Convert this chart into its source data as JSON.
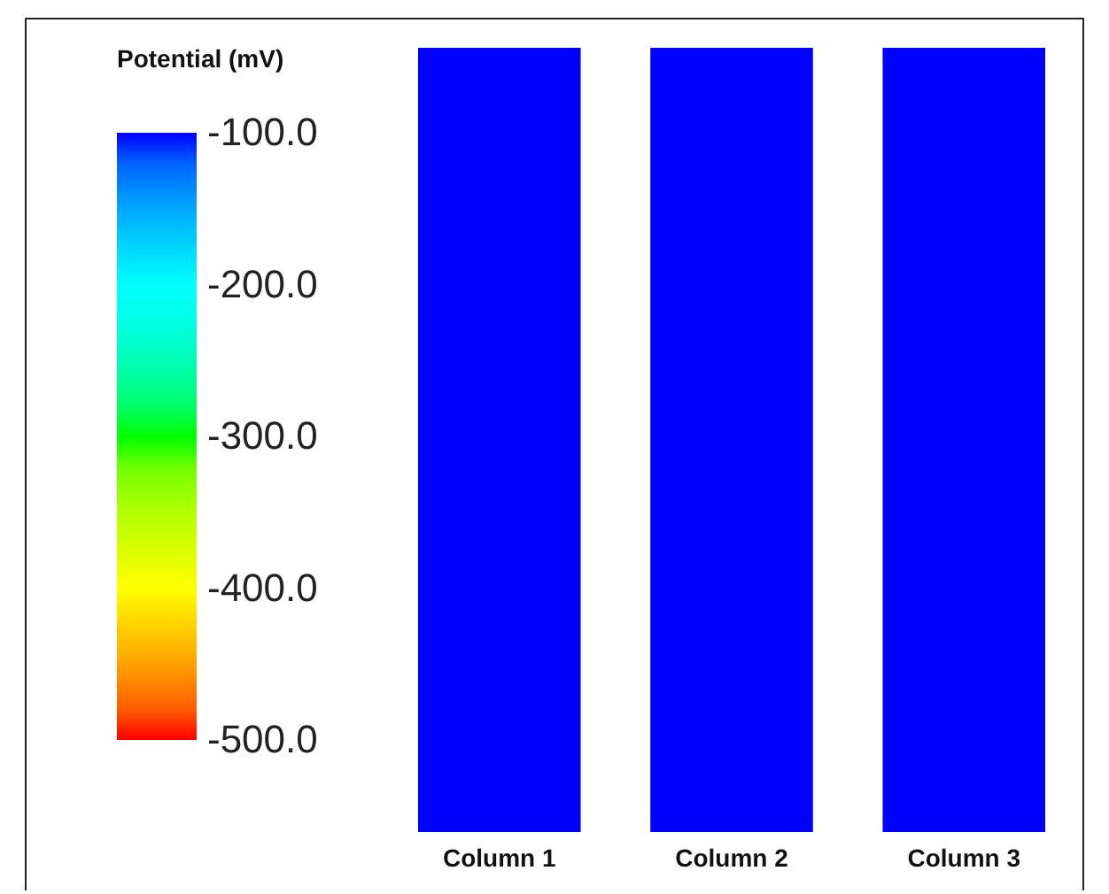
{
  "chart_data": {
    "type": "heatmap",
    "categories": [
      "Column 1",
      "Column 2",
      "Column 3"
    ],
    "y_categories": [
      null
    ],
    "cells": [
      [
        -100,
        -100,
        -100
      ]
    ],
    "clabel": "Potential (mV)",
    "clim": [
      -500,
      -100
    ],
    "cticks": [
      {
        "value": -100,
        "label": "-100.0"
      },
      {
        "value": -200,
        "label": "-200.0"
      },
      {
        "value": -300,
        "label": "-300.0"
      },
      {
        "value": -400,
        "label": "-400.0"
      },
      {
        "value": -500,
        "label": "-500.0"
      }
    ]
  }
}
